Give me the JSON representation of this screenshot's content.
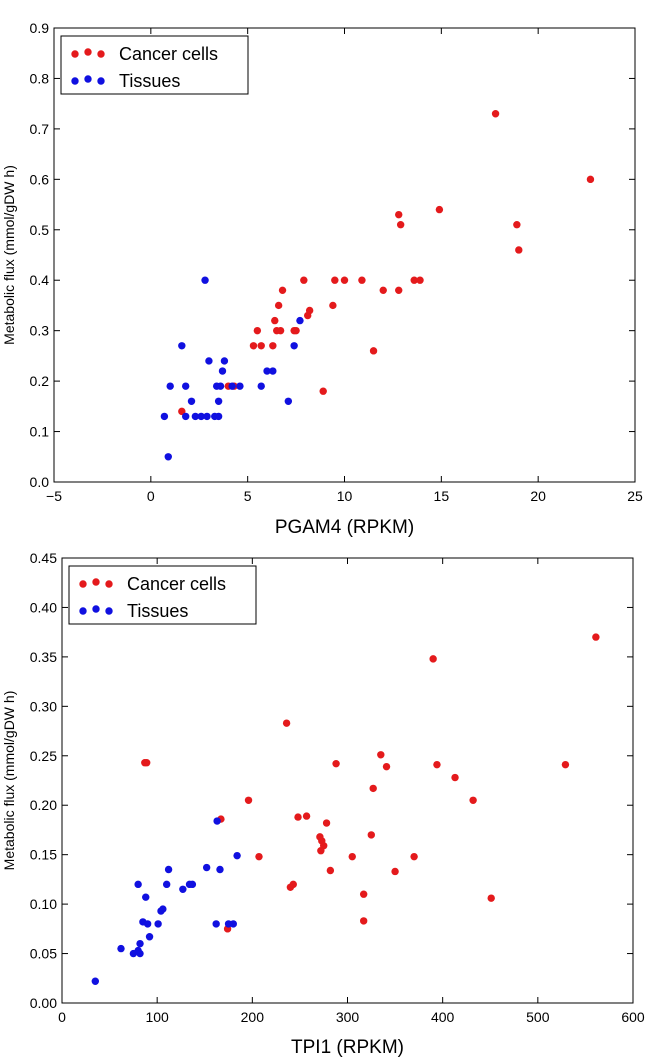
{
  "chart_data": [
    {
      "type": "scatter",
      "xlabel": "PGAM4 (RPKM)",
      "ylabel": "Metabolic flux (mmol/gDW h)",
      "xlim": [
        -5,
        25
      ],
      "ylim": [
        0,
        0.9
      ],
      "x_ticks": [
        "−5",
        "0",
        "5",
        "10",
        "15",
        "20",
        "25"
      ],
      "y_ticks": [
        "0.0",
        "0.1",
        "0.2",
        "0.3",
        "0.4",
        "0.5",
        "0.6",
        "0.7",
        "0.8",
        "0.9"
      ],
      "legend": [
        "Cancer cells",
        "Tissues"
      ],
      "colors": [
        "#e41a1c",
        "#1010e0"
      ],
      "series": [
        {
          "name": "Cancer cells",
          "points": [
            [
              17.8,
              0.73
            ],
            [
              22.7,
              0.6
            ],
            [
              14.9,
              0.54
            ],
            [
              12.8,
              0.53
            ],
            [
              12.9,
              0.51
            ],
            [
              18.9,
              0.51
            ],
            [
              19.0,
              0.46
            ],
            [
              7.9,
              0.4
            ],
            [
              9.5,
              0.4
            ],
            [
              10.0,
              0.4
            ],
            [
              10.9,
              0.4
            ],
            [
              13.6,
              0.4
            ],
            [
              13.9,
              0.4
            ],
            [
              6.8,
              0.38
            ],
            [
              12.0,
              0.38
            ],
            [
              12.8,
              0.38
            ],
            [
              6.6,
              0.35
            ],
            [
              9.4,
              0.35
            ],
            [
              8.2,
              0.34
            ],
            [
              8.1,
              0.33
            ],
            [
              6.4,
              0.32
            ],
            [
              5.5,
              0.3
            ],
            [
              6.5,
              0.3
            ],
            [
              6.7,
              0.3
            ],
            [
              7.4,
              0.3
            ],
            [
              7.5,
              0.3
            ],
            [
              5.3,
              0.27
            ],
            [
              5.7,
              0.27
            ],
            [
              6.3,
              0.27
            ],
            [
              11.5,
              0.26
            ],
            [
              8.9,
              0.18
            ],
            [
              4.0,
              0.19
            ],
            [
              4.3,
              0.19
            ],
            [
              1.6,
              0.14
            ]
          ]
        },
        {
          "name": "Tissues",
          "points": [
            [
              2.8,
              0.4
            ],
            [
              7.7,
              0.32
            ],
            [
              1.6,
              0.27
            ],
            [
              7.4,
              0.27
            ],
            [
              3.0,
              0.24
            ],
            [
              3.8,
              0.24
            ],
            [
              3.7,
              0.22
            ],
            [
              6.0,
              0.22
            ],
            [
              6.3,
              0.22
            ],
            [
              1.0,
              0.19
            ],
            [
              1.8,
              0.19
            ],
            [
              3.4,
              0.19
            ],
            [
              3.6,
              0.19
            ],
            [
              4.2,
              0.19
            ],
            [
              4.6,
              0.19
            ],
            [
              5.7,
              0.19
            ],
            [
              2.1,
              0.16
            ],
            [
              3.5,
              0.16
            ],
            [
              7.1,
              0.16
            ],
            [
              0.7,
              0.13
            ],
            [
              1.8,
              0.13
            ],
            [
              2.3,
              0.13
            ],
            [
              2.6,
              0.13
            ],
            [
              2.9,
              0.13
            ],
            [
              3.3,
              0.13
            ],
            [
              3.5,
              0.13
            ],
            [
              0.9,
              0.05
            ]
          ]
        }
      ]
    },
    {
      "type": "scatter",
      "xlabel": "TPI1 (RPKM)",
      "ylabel": "Metabolic flux (mmol/gDW h)",
      "xlim": [
        0,
        600
      ],
      "ylim": [
        0,
        0.45
      ],
      "x_ticks": [
        "0",
        "100",
        "200",
        "300",
        "400",
        "500",
        "600"
      ],
      "y_ticks": [
        "0.00",
        "0.05",
        "0.10",
        "0.15",
        "0.20",
        "0.25",
        "0.30",
        "0.35",
        "0.40",
        "0.45"
      ],
      "legend": [
        "Cancer cells",
        "Tissues"
      ],
      "colors": [
        "#e41a1c",
        "#1010e0"
      ],
      "series": [
        {
          "name": "Cancer cells",
          "points": [
            [
              561,
              0.37
            ],
            [
              390,
              0.348
            ],
            [
              236,
              0.283
            ],
            [
              87,
              0.243
            ],
            [
              89,
              0.243
            ],
            [
              288,
              0.242
            ],
            [
              394,
              0.241
            ],
            [
              529,
              0.241
            ],
            [
              335,
              0.251
            ],
            [
              341,
              0.239
            ],
            [
              413,
              0.228
            ],
            [
              327,
              0.217
            ],
            [
              432,
              0.205
            ],
            [
              196,
              0.205
            ],
            [
              167,
              0.186
            ],
            [
              248,
              0.188
            ],
            [
              257,
              0.189
            ],
            [
              278,
              0.182
            ],
            [
              325,
              0.17
            ],
            [
              271,
              0.168
            ],
            [
              273,
              0.164
            ],
            [
              275,
              0.159
            ],
            [
              272,
              0.154
            ],
            [
              305,
              0.148
            ],
            [
              370,
              0.148
            ],
            [
              207,
              0.148
            ],
            [
              282,
              0.134
            ],
            [
              350,
              0.133
            ],
            [
              317,
              0.11
            ],
            [
              451,
              0.106
            ],
            [
              243,
              0.12
            ],
            [
              240,
              0.117
            ],
            [
              317,
              0.083
            ],
            [
              174,
              0.075
            ]
          ]
        },
        {
          "name": "Tissues",
          "points": [
            [
              35,
              0.022
            ],
            [
              62,
              0.055
            ],
            [
              75,
              0.05
            ],
            [
              80,
              0.053
            ],
            [
              82,
              0.05
            ],
            [
              82,
              0.06
            ],
            [
              92,
              0.067
            ],
            [
              101,
              0.08
            ],
            [
              104,
              0.093
            ],
            [
              106,
              0.095
            ],
            [
              85,
              0.082
            ],
            [
              90,
              0.08
            ],
            [
              88,
              0.107
            ],
            [
              80,
              0.12
            ],
            [
              110,
              0.12
            ],
            [
              112,
              0.135
            ],
            [
              127,
              0.115
            ],
            [
              134,
              0.12
            ],
            [
              137,
              0.12
            ],
            [
              152,
              0.137
            ],
            [
              166,
              0.135
            ],
            [
              184,
              0.149
            ],
            [
              163,
              0.184
            ],
            [
              162,
              0.08
            ],
            [
              175,
              0.08
            ],
            [
              180,
              0.08
            ]
          ]
        }
      ]
    }
  ]
}
